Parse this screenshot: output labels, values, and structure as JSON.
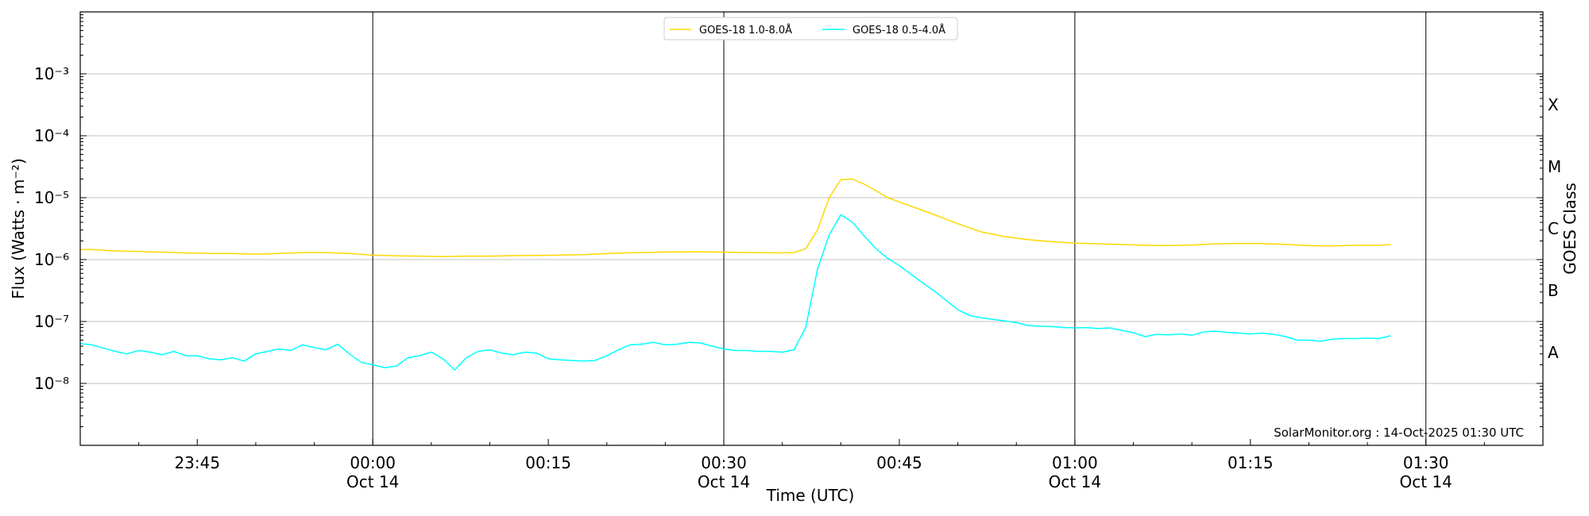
{
  "chart_data": {
    "type": "line",
    "xlabel": "Time (UTC)",
    "ylabel": "Flux (Watts · m⁻²)",
    "ylabel_right": "GOES Class",
    "yscale": "log",
    "ylim": [
      1e-09,
      0.01
    ],
    "xlim": [
      "2025-10-13 23:35",
      "2025-10-14 01:40"
    ],
    "y_ticks": [
      {
        "value": 1e-08,
        "label": "10⁻⁸"
      },
      {
        "value": 1e-07,
        "label": "10⁻⁷"
      },
      {
        "value": 1e-06,
        "label": "10⁻⁶"
      },
      {
        "value": 1e-05,
        "label": "10⁻⁵"
      },
      {
        "value": 0.0001,
        "label": "10⁻⁴"
      },
      {
        "value": 0.001,
        "label": "10⁻³"
      }
    ],
    "x_ticks": [
      {
        "time": "2025-10-13 23:45",
        "label": "23:45",
        "sublabel": "",
        "major": false
      },
      {
        "time": "2025-10-14 00:00",
        "label": "00:00",
        "sublabel": "Oct 14",
        "major": true
      },
      {
        "time": "2025-10-14 00:15",
        "label": "00:15",
        "sublabel": "",
        "major": false
      },
      {
        "time": "2025-10-14 00:30",
        "label": "00:30",
        "sublabel": "Oct 14",
        "major": true
      },
      {
        "time": "2025-10-14 00:45",
        "label": "00:45",
        "sublabel": "",
        "major": false
      },
      {
        "time": "2025-10-14 01:00",
        "label": "01:00",
        "sublabel": "Oct 14",
        "major": true
      },
      {
        "time": "2025-10-14 01:15",
        "label": "01:15",
        "sublabel": "",
        "major": false
      },
      {
        "time": "2025-10-14 01:30",
        "label": "01:30",
        "sublabel": "Oct 14",
        "major": true
      }
    ],
    "goes_classes": [
      {
        "label": "A",
        "value": 3.16e-08
      },
      {
        "label": "B",
        "value": 3.16e-07
      },
      {
        "label": "C",
        "value": 3.16e-06
      },
      {
        "label": "M",
        "value": 3.16e-05
      },
      {
        "label": "X",
        "value": 0.000316
      }
    ],
    "grid": true,
    "legend_position": "top-center",
    "annotation": "SolarMonitor.org : 14-Oct-2025 01:30 UTC",
    "series": [
      {
        "name": "GOES-18 1.0-8.0Å",
        "color": "#ffd700",
        "x": [
          "2025-10-13 23:35",
          "2025-10-13 23:36",
          "2025-10-13 23:38",
          "2025-10-13 23:40",
          "2025-10-13 23:42",
          "2025-10-13 23:44",
          "2025-10-13 23:46",
          "2025-10-13 23:48",
          "2025-10-13 23:50",
          "2025-10-13 23:52",
          "2025-10-13 23:54",
          "2025-10-13 23:56",
          "2025-10-13 23:58",
          "2025-10-14 00:00",
          "2025-10-14 00:02",
          "2025-10-14 00:04",
          "2025-10-14 00:06",
          "2025-10-14 00:08",
          "2025-10-14 00:10",
          "2025-10-14 00:12",
          "2025-10-14 00:14",
          "2025-10-14 00:16",
          "2025-10-14 00:18",
          "2025-10-14 00:20",
          "2025-10-14 00:22",
          "2025-10-14 00:24",
          "2025-10-14 00:26",
          "2025-10-14 00:28",
          "2025-10-14 00:30",
          "2025-10-14 00:32",
          "2025-10-14 00:34",
          "2025-10-14 00:35",
          "2025-10-14 00:36",
          "2025-10-14 00:37",
          "2025-10-14 00:38",
          "2025-10-14 00:39",
          "2025-10-14 00:40",
          "2025-10-14 00:41",
          "2025-10-14 00:42",
          "2025-10-14 00:43",
          "2025-10-14 00:44",
          "2025-10-14 00:46",
          "2025-10-14 00:48",
          "2025-10-14 00:50",
          "2025-10-14 00:52",
          "2025-10-14 00:54",
          "2025-10-14 00:56",
          "2025-10-14 00:58",
          "2025-10-14 01:00",
          "2025-10-14 01:02",
          "2025-10-14 01:04",
          "2025-10-14 01:06",
          "2025-10-14 01:08",
          "2025-10-14 01:10",
          "2025-10-14 01:12",
          "2025-10-14 01:14",
          "2025-10-14 01:16",
          "2025-10-14 01:18",
          "2025-10-14 01:20",
          "2025-10-14 01:22",
          "2025-10-14 01:24",
          "2025-10-14 01:26",
          "2025-10-14 01:27"
        ],
        "y": [
          1.45e-06,
          1.45e-06,
          1.38e-06,
          1.35e-06,
          1.32e-06,
          1.28e-06,
          1.26e-06,
          1.25e-06,
          1.22e-06,
          1.26e-06,
          1.3e-06,
          1.3e-06,
          1.25e-06,
          1.18e-06,
          1.15e-06,
          1.14e-06,
          1.12e-06,
          1.14e-06,
          1.14e-06,
          1.16e-06,
          1.17e-06,
          1.18e-06,
          1.2e-06,
          1.25e-06,
          1.29e-06,
          1.31e-06,
          1.33e-06,
          1.34e-06,
          1.32e-06,
          1.3e-06,
          1.29e-06,
          1.28e-06,
          1.3e-06,
          1.5e-06,
          3e-06,
          1e-05,
          1.95e-05,
          2e-05,
          1.65e-05,
          1.3e-05,
          1e-05,
          7.3e-06,
          5.3e-06,
          3.8e-06,
          2.8e-06,
          2.35e-06,
          2.1e-06,
          1.95e-06,
          1.85e-06,
          1.8e-06,
          1.75e-06,
          1.7e-06,
          1.68e-06,
          1.72e-06,
          1.8e-06,
          1.82e-06,
          1.82e-06,
          1.76e-06,
          1.68e-06,
          1.66e-06,
          1.7e-06,
          1.7e-06,
          1.75e-06
        ]
      },
      {
        "name": "GOES-18 0.5-4.0Å",
        "color": "#00ffff",
        "x": [
          "2025-10-13 23:35",
          "2025-10-13 23:36",
          "2025-10-13 23:37",
          "2025-10-13 23:38",
          "2025-10-13 23:39",
          "2025-10-13 23:40",
          "2025-10-13 23:41",
          "2025-10-13 23:42",
          "2025-10-13 23:43",
          "2025-10-13 23:44",
          "2025-10-13 23:45",
          "2025-10-13 23:46",
          "2025-10-13 23:47",
          "2025-10-13 23:48",
          "2025-10-13 23:49",
          "2025-10-13 23:50",
          "2025-10-13 23:51",
          "2025-10-13 23:52",
          "2025-10-13 23:53",
          "2025-10-13 23:54",
          "2025-10-13 23:55",
          "2025-10-13 23:56",
          "2025-10-13 23:57",
          "2025-10-13 23:58",
          "2025-10-13 23:59",
          "2025-10-14 00:00",
          "2025-10-14 00:01",
          "2025-10-14 00:02",
          "2025-10-14 00:03",
          "2025-10-14 00:04",
          "2025-10-14 00:05",
          "2025-10-14 00:06",
          "2025-10-14 00:07",
          "2025-10-14 00:08",
          "2025-10-14 00:09",
          "2025-10-14 00:10",
          "2025-10-14 00:11",
          "2025-10-14 00:12",
          "2025-10-14 00:13",
          "2025-10-14 00:14",
          "2025-10-14 00:15",
          "2025-10-14 00:16",
          "2025-10-14 00:17",
          "2025-10-14 00:18",
          "2025-10-14 00:19",
          "2025-10-14 00:20",
          "2025-10-14 00:21",
          "2025-10-14 00:22",
          "2025-10-14 00:23",
          "2025-10-14 00:24",
          "2025-10-14 00:25",
          "2025-10-14 00:26",
          "2025-10-14 00:27",
          "2025-10-14 00:28",
          "2025-10-14 00:29",
          "2025-10-14 00:30",
          "2025-10-14 00:31",
          "2025-10-14 00:32",
          "2025-10-14 00:33",
          "2025-10-14 00:34",
          "2025-10-14 00:35",
          "2025-10-14 00:36",
          "2025-10-14 00:37",
          "2025-10-14 00:38",
          "2025-10-14 00:39",
          "2025-10-14 00:40",
          "2025-10-14 00:41",
          "2025-10-14 00:42",
          "2025-10-14 00:43",
          "2025-10-14 00:44",
          "2025-10-14 00:45",
          "2025-10-14 00:46",
          "2025-10-14 00:47",
          "2025-10-14 00:48",
          "2025-10-14 00:49",
          "2025-10-14 00:50",
          "2025-10-14 00:51",
          "2025-10-14 00:52",
          "2025-10-14 00:53",
          "2025-10-14 00:54",
          "2025-10-14 00:55",
          "2025-10-14 00:56",
          "2025-10-14 00:57",
          "2025-10-14 00:58",
          "2025-10-14 00:59",
          "2025-10-14 01:00",
          "2025-10-14 01:01",
          "2025-10-14 01:02",
          "2025-10-14 01:03",
          "2025-10-14 01:04",
          "2025-10-14 01:05",
          "2025-10-14 01:06",
          "2025-10-14 01:07",
          "2025-10-14 01:08",
          "2025-10-14 01:09",
          "2025-10-14 01:10",
          "2025-10-14 01:11",
          "2025-10-14 01:12",
          "2025-10-14 01:13",
          "2025-10-14 01:14",
          "2025-10-14 01:15",
          "2025-10-14 01:16",
          "2025-10-14 01:17",
          "2025-10-14 01:18",
          "2025-10-14 01:19",
          "2025-10-14 01:20",
          "2025-10-14 01:21",
          "2025-10-14 01:22",
          "2025-10-14 01:23",
          "2025-10-14 01:24",
          "2025-10-14 01:25",
          "2025-10-14 01:26",
          "2025-10-14 01:27"
        ],
        "y": [
          4.4e-08,
          4.2e-08,
          3.7e-08,
          3.3e-08,
          3e-08,
          3.4e-08,
          3.2e-08,
          2.9e-08,
          3.3e-08,
          2.8e-08,
          2.8e-08,
          2.5e-08,
          2.4e-08,
          2.6e-08,
          2.3e-08,
          3e-08,
          3.3e-08,
          3.6e-08,
          3.4e-08,
          4.2e-08,
          3.8e-08,
          3.5e-08,
          4.3e-08,
          3e-08,
          2.2e-08,
          2e-08,
          1.8e-08,
          1.9e-08,
          2.6e-08,
          2.8e-08,
          3.2e-08,
          2.5e-08,
          1.65e-08,
          2.6e-08,
          3.3e-08,
          3.5e-08,
          3.1e-08,
          2.9e-08,
          3.2e-08,
          3.1e-08,
          2.5e-08,
          2.4e-08,
          2.35e-08,
          2.3e-08,
          2.35e-08,
          2.8e-08,
          3.5e-08,
          4.2e-08,
          4.3e-08,
          4.6e-08,
          4.2e-08,
          4.3e-08,
          4.6e-08,
          4.5e-08,
          4e-08,
          3.6e-08,
          3.4e-08,
          3.4e-08,
          3.3e-08,
          3.3e-08,
          3.2e-08,
          3.5e-08,
          8e-08,
          7e-07,
          2.5e-06,
          5.3e-06,
          4e-06,
          2.4e-06,
          1.5e-06,
          1.05e-06,
          8e-07,
          5.8e-07,
          4.2e-07,
          3.1e-07,
          2.2e-07,
          1.55e-07,
          1.25e-07,
          1.15e-07,
          1.08e-07,
          1.02e-07,
          9.6e-08,
          8.6e-08,
          8.4e-08,
          8.3e-08,
          8e-08,
          7.9e-08,
          8e-08,
          7.7e-08,
          7.9e-08,
          7.2e-08,
          6.6e-08,
          5.7e-08,
          6.2e-08,
          6.1e-08,
          6.3e-08,
          6e-08,
          6.8e-08,
          7e-08,
          6.7e-08,
          6.5e-08,
          6.3e-08,
          6.5e-08,
          6.2e-08,
          5.7e-08,
          5e-08,
          5e-08,
          4.8e-08,
          5.2e-08,
          5.3e-08,
          5.3e-08,
          5.4e-08,
          5.3e-08,
          5.9e-08
        ]
      }
    ]
  }
}
